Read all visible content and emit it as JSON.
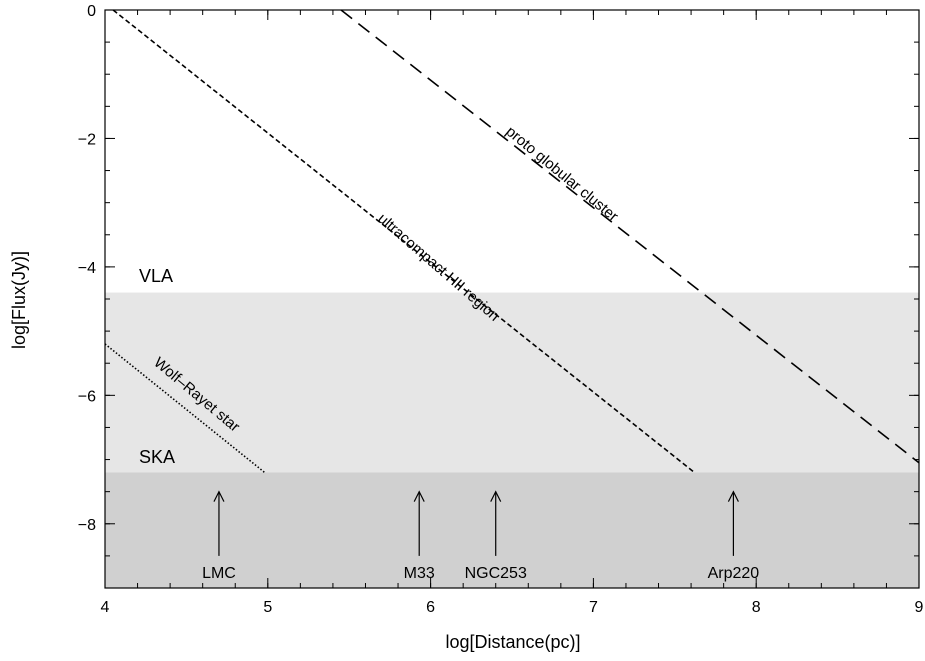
{
  "chart_data": {
    "type": "line",
    "xlabel": "log[Distance(pc)]",
    "ylabel": "log[Flux(Jy)]",
    "xlim": [
      4,
      9
    ],
    "ylim": [
      -9,
      0
    ],
    "x_ticks": [
      4,
      5,
      6,
      7,
      8,
      9
    ],
    "y_ticks": [
      0,
      -2,
      -4,
      -6,
      -8
    ],
    "x_tick_labels": [
      "4",
      "5",
      "6",
      "7",
      "8",
      "9"
    ],
    "y_tick_labels": [
      "0",
      "−2",
      "−4",
      "−6",
      "−8"
    ],
    "grid": false,
    "regions": [
      {
        "name": "VLA",
        "y_from": -4.4,
        "y_to": -7.2,
        "color": "#e6e6e6"
      },
      {
        "name": "SKA",
        "y_from": -7.2,
        "y_to": -9,
        "color": "#d0d0d0"
      }
    ],
    "series": [
      {
        "name": "proto globular cluster",
        "style": "long-dash",
        "x": [
          5.45,
          9.0
        ],
        "y": [
          0.0,
          -7.05
        ]
      },
      {
        "name": "ultracompact HII region",
        "style": "short-dash",
        "x": [
          4.05,
          7.62
        ],
        "y": [
          0.0,
          -7.2
        ]
      },
      {
        "name": "Wolf–Rayet star",
        "style": "dotted",
        "x": [
          4.0,
          4.98
        ],
        "y": [
          -5.2,
          -7.2
        ]
      }
    ],
    "markers": [
      {
        "label": "LMC",
        "x": 4.7
      },
      {
        "label": "M33",
        "x": 5.93
      },
      {
        "label": "NGC253",
        "x": 6.4
      },
      {
        "label": "Arp220",
        "x": 7.86
      }
    ],
    "marker_arrow_y": [
      -8.5,
      -7.5
    ]
  }
}
